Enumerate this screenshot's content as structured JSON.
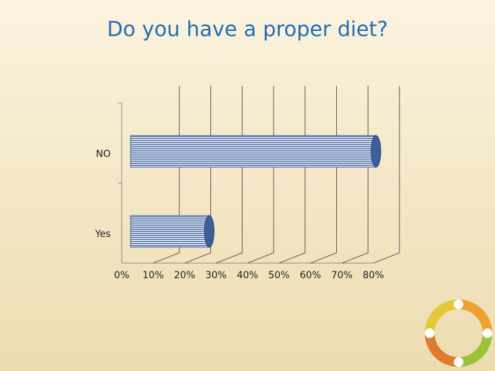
{
  "chart_data": {
    "type": "bar",
    "orientation": "horizontal",
    "title": "Do you have a proper diet?",
    "categories": [
      "NO",
      "Yes"
    ],
    "values": [
      78,
      25
    ],
    "color": "#3c5f9a",
    "xlim": [
      0,
      80
    ],
    "xticks": [
      {
        "value": 0,
        "label": "0%"
      },
      {
        "value": 10,
        "label": "10%"
      },
      {
        "value": 20,
        "label": "20%"
      },
      {
        "value": 30,
        "label": "30%"
      },
      {
        "value": 40,
        "label": "40%"
      },
      {
        "value": 50,
        "label": "50%"
      },
      {
        "value": 60,
        "label": "60%"
      },
      {
        "value": 70,
        "label": "70%"
      },
      {
        "value": 80,
        "label": "80%"
      }
    ],
    "grid": true
  }
}
